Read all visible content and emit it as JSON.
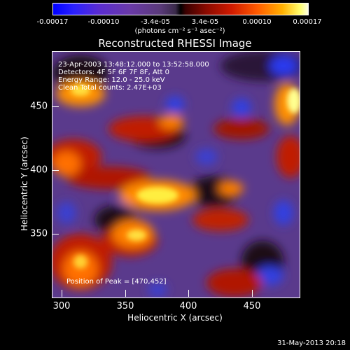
{
  "colorbar": {
    "ticks": [
      "-0.00017",
      "-0.00010",
      "-3.4e-05",
      "3.4e-05",
      "0.00010",
      "0.00017"
    ],
    "units": "(photons cm⁻² s⁻¹ asec⁻²)"
  },
  "title": "Reconstructed RHESSI Image",
  "annotations": {
    "time_range": "23-Apr-2003 13:48:12.000 to 13:52:58.000",
    "detectors": "Detectors: 4F 5F 6F 7F 8F, Att 0",
    "energy": "Energy Range: 12.0 - 25.0 keV",
    "clean": "Clean     Total counts: 2.47E+03",
    "peak": "Position of Peak = [470,452]"
  },
  "axes": {
    "xlabel": "Heliocentric X (arcsec)",
    "ylabel": "Heliocentric Y (arcsec)",
    "xticks": [
      "300",
      "350",
      "400",
      "450"
    ],
    "yticks": [
      "350",
      "400",
      "450"
    ]
  },
  "footer": {
    "date": "31-May-2013 20:18"
  },
  "colors": {
    "background": "#000000",
    "text": "#ffffff",
    "image_base": "#5a3a8c"
  }
}
